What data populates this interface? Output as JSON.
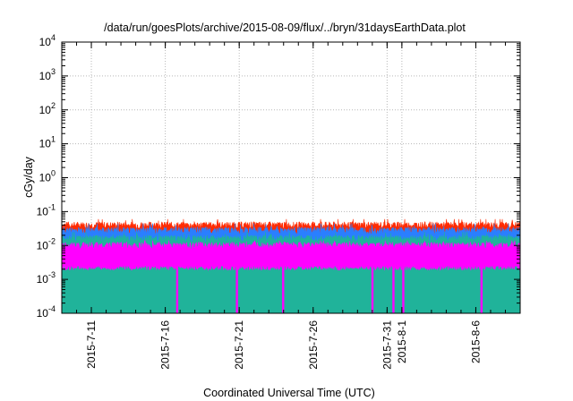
{
  "chart_data": {
    "type": "area",
    "title": "/data/run/goesPlots/archive/2015-08-09/flux/../bryn/31daysEarthData.plot",
    "xlabel": "Coordinated Universal Time (UTC)",
    "ylabel": "cGy/day",
    "y_scale": "log",
    "ylim": [
      0.0001,
      10000
    ],
    "xlim": [
      "2015-07-09",
      "2015-08-09"
    ],
    "grid": true,
    "legend": "none",
    "y_ticks": [
      {
        "value": 0.0001,
        "base": "10",
        "exp": "-4"
      },
      {
        "value": 0.001,
        "base": "10",
        "exp": "-3"
      },
      {
        "value": 0.01,
        "base": "10",
        "exp": "-2"
      },
      {
        "value": 0.1,
        "base": "10",
        "exp": "-1"
      },
      {
        "value": 1,
        "base": "10",
        "exp": "0"
      },
      {
        "value": 10,
        "base": "10",
        "exp": "1"
      },
      {
        "value": 100,
        "base": "10",
        "exp": "2"
      },
      {
        "value": 1000,
        "base": "10",
        "exp": "3"
      },
      {
        "value": 10000,
        "base": "10",
        "exp": "4"
      }
    ],
    "x_ticks": [
      {
        "date": "2015-07-11",
        "label": "2015-7-11"
      },
      {
        "date": "2015-07-16",
        "label": "2015-7-16"
      },
      {
        "date": "2015-07-21",
        "label": "2015-7-21"
      },
      {
        "date": "2015-07-26",
        "label": "2015-7-26"
      },
      {
        "date": "2015-07-31",
        "label": "2015-7-31"
      },
      {
        "date": "2015-08-01",
        "label": "2015-8-1"
      },
      {
        "date": "2015-08-06",
        "label": "2015-8-6"
      }
    ],
    "series": [
      {
        "color": "#ff2a00",
        "x": [
          "2015-07-09",
          "2015-08-09"
        ],
        "y_typical": 0.04,
        "y_peak": 0.06
      },
      {
        "color": "#2a7fff",
        "x": [
          "2015-07-09",
          "2015-08-09"
        ],
        "y_typical": 0.028,
        "y_peak": 0.045
      },
      {
        "color": "#20b39a",
        "x": [
          "2015-07-09",
          "2015-08-09"
        ],
        "y_typical": 0.016,
        "y_peak": 0.025
      },
      {
        "color": "#ff00ff",
        "x": [
          "2015-07-09",
          "2015-08-09"
        ],
        "y_typical": 0.01,
        "y_peak": 0.014,
        "y_min": 0.0025
      }
    ],
    "dropouts": [
      {
        "date": "2015-07-16 19:00",
        "y": 0.0001
      },
      {
        "date": "2015-07-20 20:00",
        "y": 0.0001
      },
      {
        "date": "2015-07-23 23:00",
        "y": 0.0001
      },
      {
        "date": "2015-07-30 00:00",
        "y": 0.0001
      },
      {
        "date": "2015-07-31 10:00",
        "y": 0.0001
      },
      {
        "date": "2015-08-01 02:00",
        "y": 0.0001
      },
      {
        "date": "2015-08-06 09:00",
        "y": 0.0001
      }
    ]
  }
}
